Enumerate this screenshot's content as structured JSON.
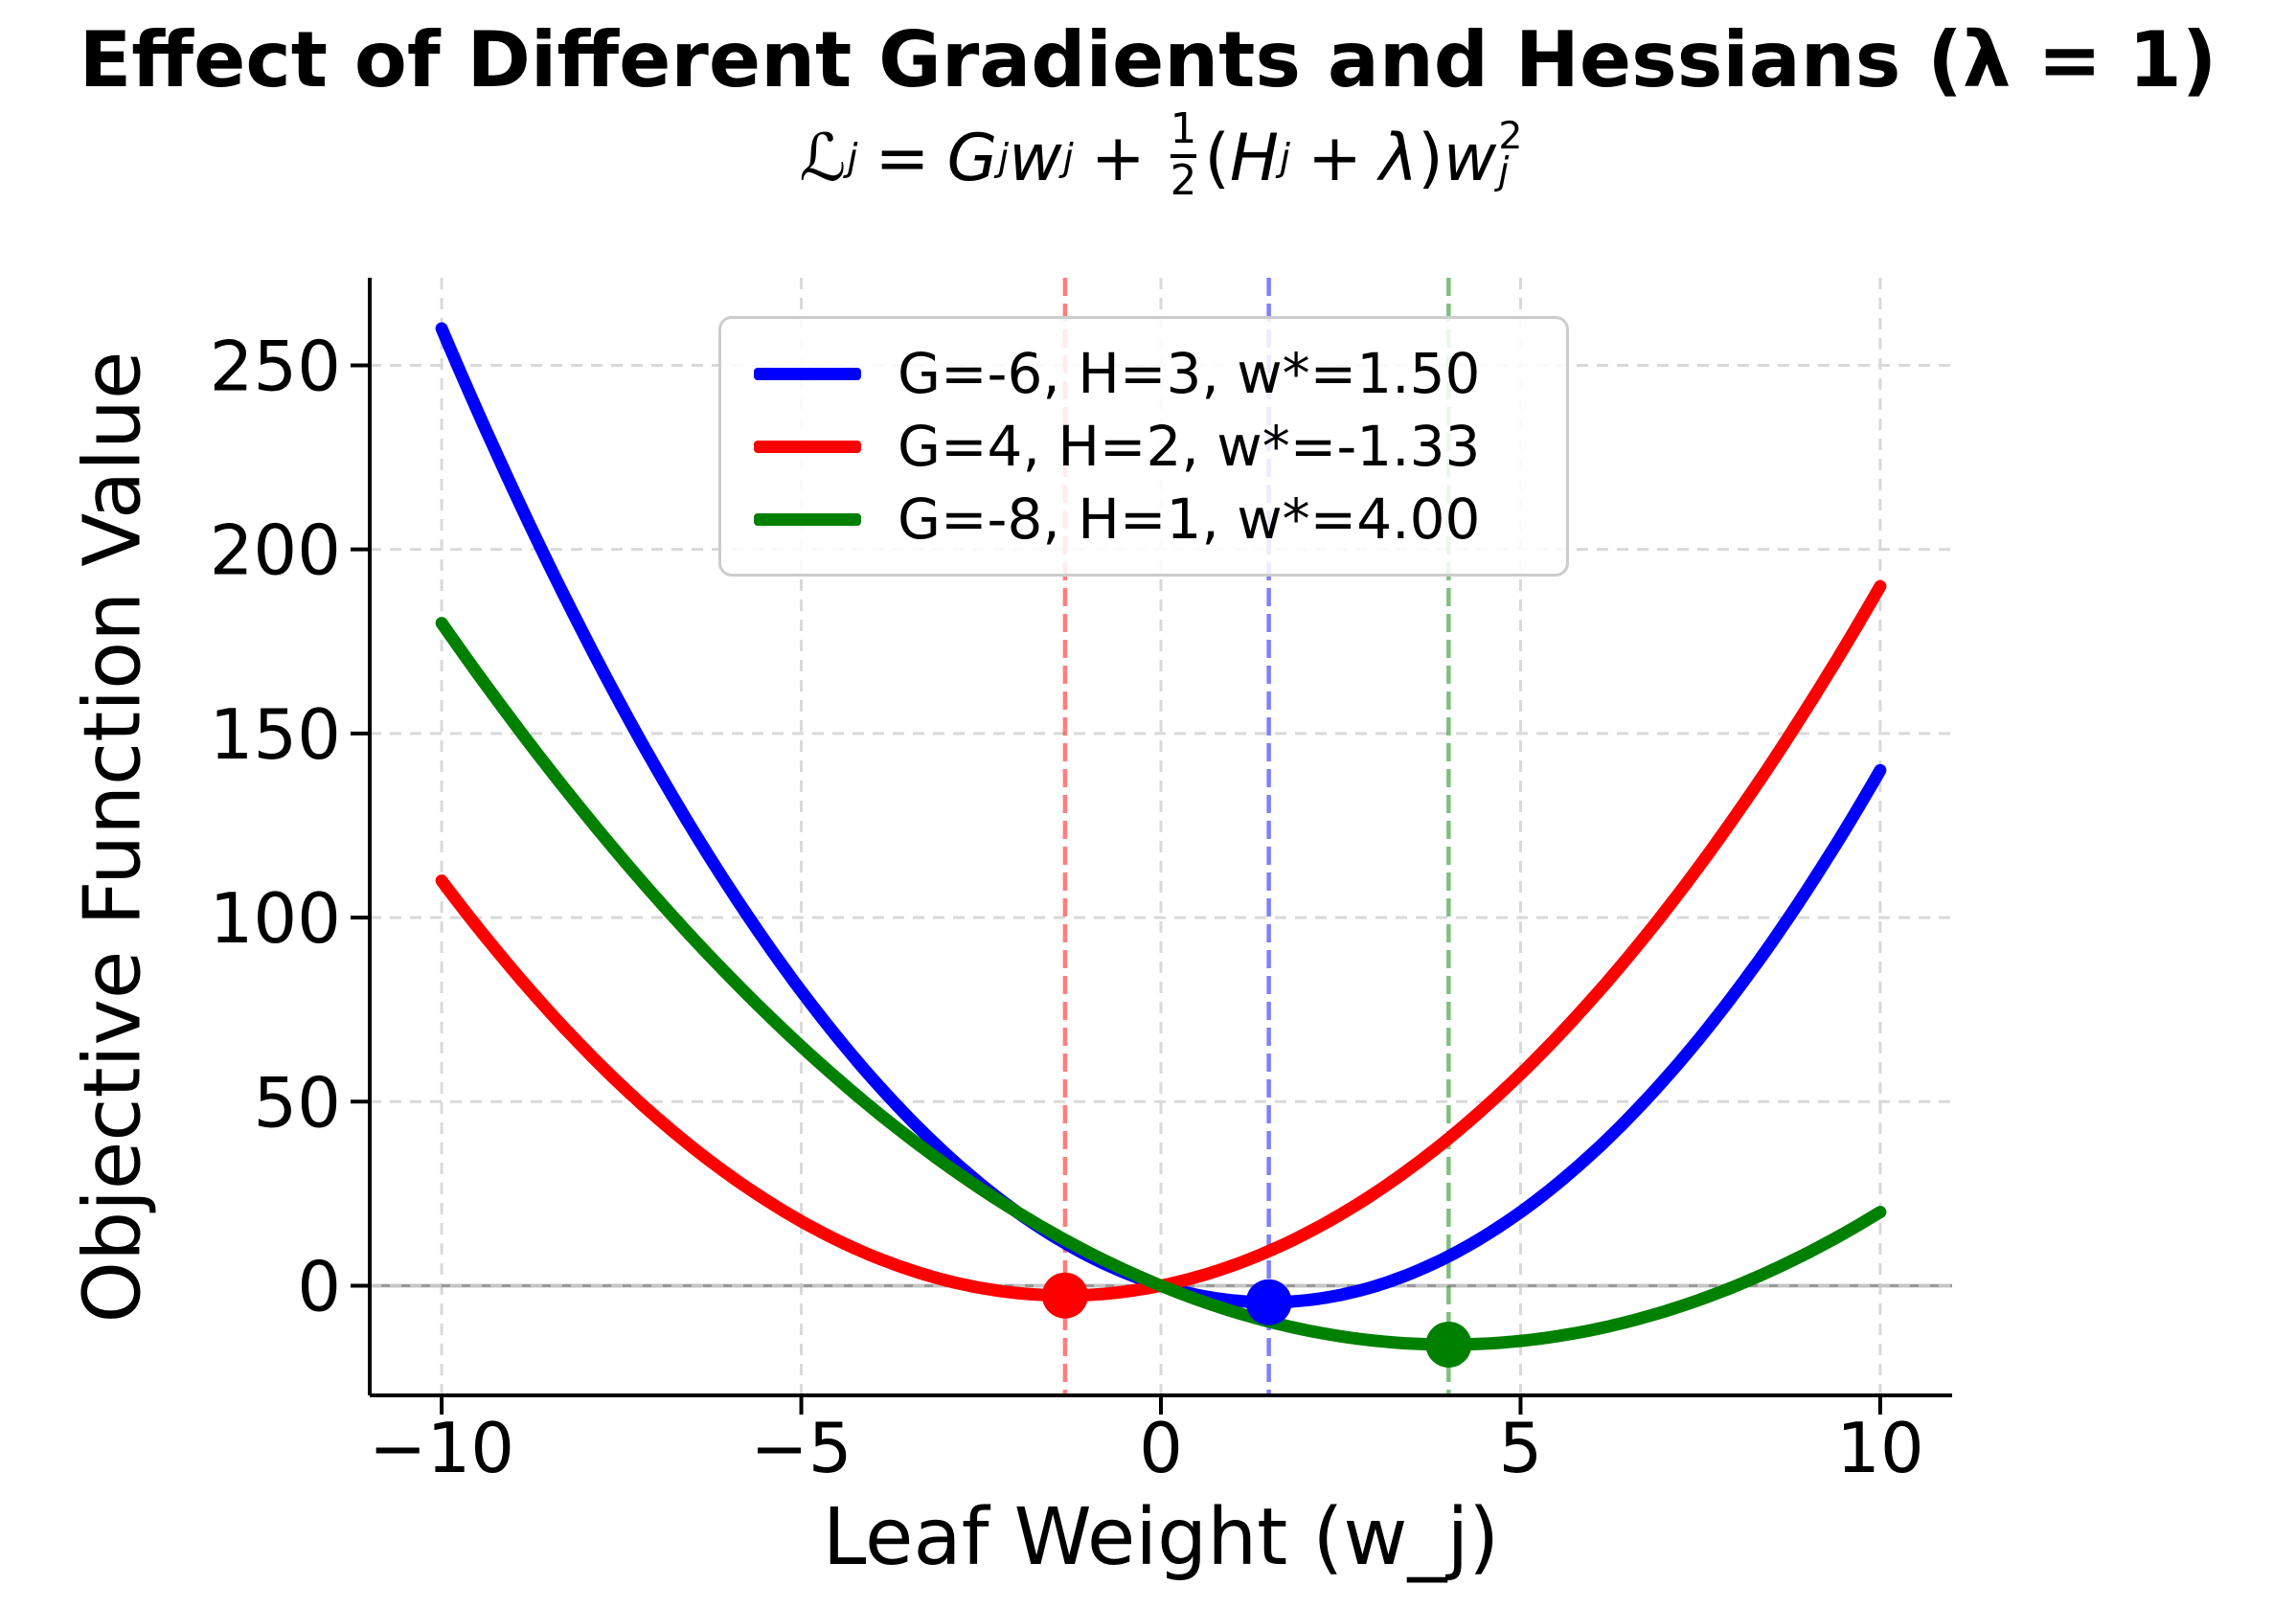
{
  "figure": {
    "title": "Effect of Different Gradients and Hessians (λ = 1)"
  },
  "formula": {
    "plain_text": "ℒ_j = G_j w_j + 1/2 (H_j + λ) w_j^2",
    "tokens": [
      {
        "k": "n",
        "t": "ℒ"
      },
      {
        "k": "sub",
        "t": "j"
      },
      {
        "k": "sp",
        "t": "="
      },
      {
        "k": "it",
        "t": "G"
      },
      {
        "k": "sub",
        "t": "j"
      },
      {
        "k": "it",
        "t": "w"
      },
      {
        "k": "sub",
        "t": "j"
      },
      {
        "k": "sp",
        "t": "+"
      },
      {
        "k": "frac",
        "num": "1",
        "den": "2"
      },
      {
        "k": "n",
        "t": "("
      },
      {
        "k": "it",
        "t": "H"
      },
      {
        "k": "sub",
        "t": "j"
      },
      {
        "k": "sp",
        "t": "+"
      },
      {
        "k": "it",
        "t": "λ"
      },
      {
        "k": "n",
        "t": ")"
      },
      {
        "k": "it",
        "t": "w"
      },
      {
        "k": "supsub",
        "sup": "2",
        "sub": "j"
      }
    ]
  },
  "chart_data": {
    "type": "line",
    "title": "Effect of Different Gradients and Hessians (λ = 1)",
    "xlabel": "Leaf Weight (w_j)",
    "ylabel": "Objective Function Value",
    "lambda": 1,
    "x_sample_range": [
      -10,
      10
    ],
    "xlim": [
      -11,
      11
    ],
    "ylim": [
      -29.8,
      273.8
    ],
    "xticks": [
      -10,
      -5,
      0,
      5,
      10
    ],
    "xtick_labels": [
      "−10",
      "−5",
      "0",
      "5",
      "10"
    ],
    "yticks": [
      0,
      50,
      100,
      150,
      200,
      250
    ],
    "ytick_labels": [
      "0",
      "50",
      "100",
      "150",
      "200",
      "250"
    ],
    "grid": {
      "on": true,
      "style": "dashed",
      "color": "#d9d9d9"
    },
    "zero_line": {
      "y": 0,
      "color": "#999999",
      "dash_overlay_color": "#c6c6c6"
    },
    "legend": {
      "location": "upper center",
      "border_color": "#cccccc"
    },
    "series": [
      {
        "label": "G=-6, H=3, w*=1.50",
        "G": -6,
        "H": 3,
        "w_star": 1.5,
        "min_value": -4.5,
        "color": "#0000ff",
        "endpoints": [
          [
            -10,
            260
          ],
          [
            10,
            140
          ]
        ]
      },
      {
        "label": "G=4, H=2, w*=-1.33",
        "G": 4,
        "H": 2,
        "w_star": -1.3333,
        "min_value": -2.6667,
        "color": "#ff0000",
        "endpoints": [
          [
            -10,
            110
          ],
          [
            10,
            190
          ]
        ]
      },
      {
        "label": "G=-8, H=1, w*=4.00",
        "G": -8,
        "H": 1,
        "w_star": 4,
        "min_value": -16,
        "color": "#008000",
        "endpoints": [
          [
            -10,
            180
          ],
          [
            10,
            20
          ]
        ]
      }
    ]
  }
}
